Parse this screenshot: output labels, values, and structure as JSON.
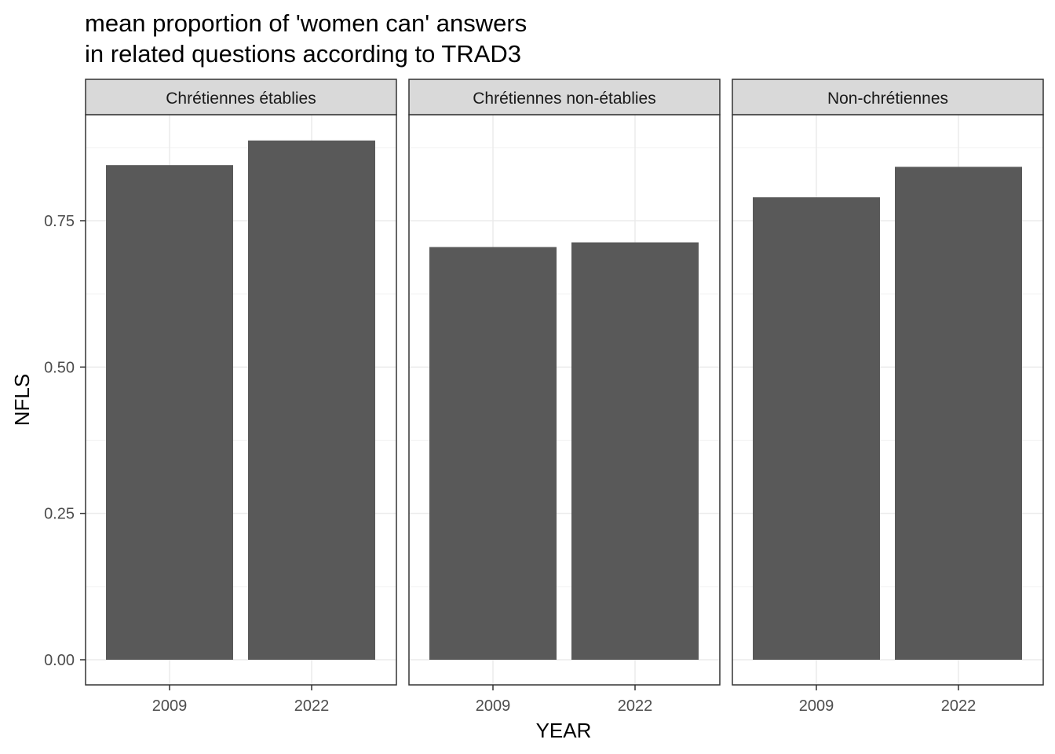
{
  "chart_data": {
    "type": "bar",
    "title_lines": [
      "mean proportion of 'women can' answers",
      "in related questions according to TRAD3"
    ],
    "xlabel": "YEAR",
    "ylabel": "NFLS",
    "ylim": [
      0,
      0.9
    ],
    "yticks": [
      0.0,
      0.25,
      0.5,
      0.75
    ],
    "ytick_labels": [
      "0.00",
      "0.25",
      "0.50",
      "0.75"
    ],
    "categories": [
      "2009",
      "2022"
    ],
    "grid": true,
    "bar_color": "#595959",
    "facets": [
      {
        "label": "Chrétiennes établies",
        "values": [
          0.845,
          0.887
        ]
      },
      {
        "label": "Chrétiennes non-établies",
        "values": [
          0.705,
          0.713
        ]
      },
      {
        "label": "Non-chrétiennes",
        "values": [
          0.79,
          0.842
        ]
      }
    ]
  }
}
